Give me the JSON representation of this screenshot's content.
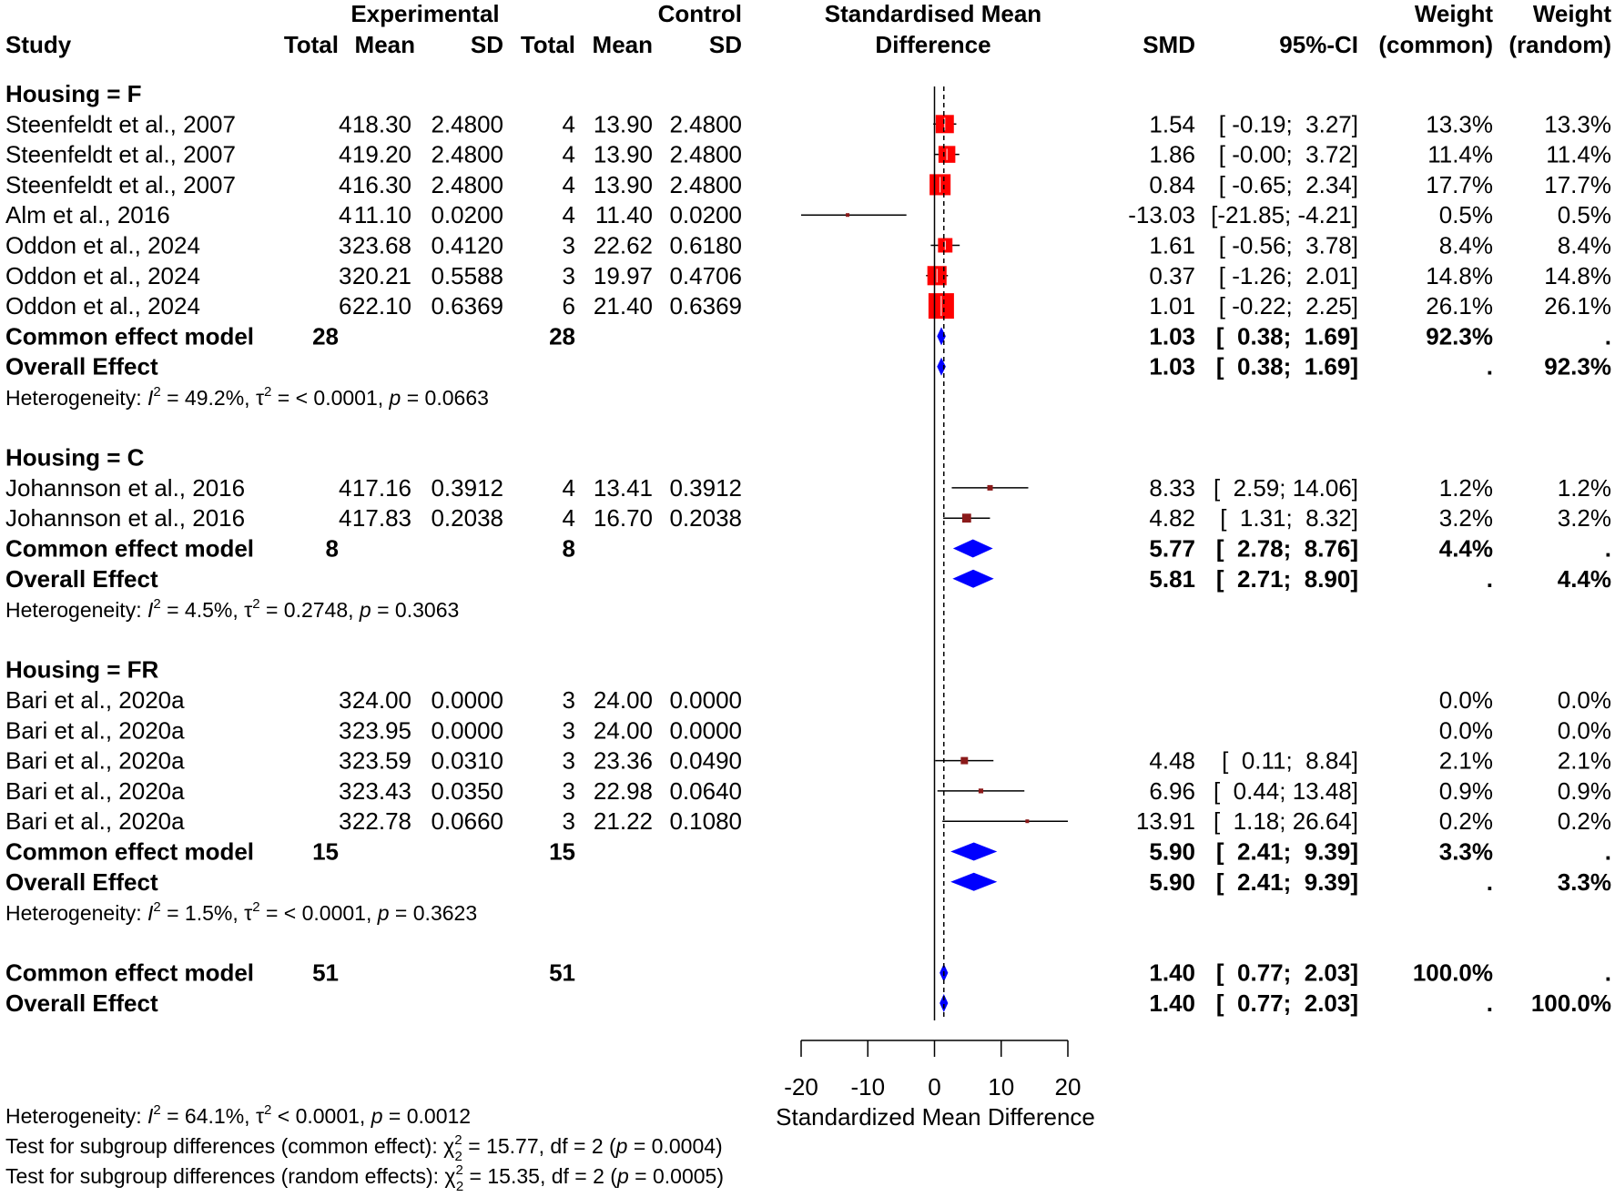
{
  "chart_data": {
    "type": "forest",
    "columns": {
      "experimental_group": "Experimental",
      "control_group": "Control",
      "smd_group_line1": "Standardised Mean",
      "smd_group_line2": "Difference",
      "weight_line1": "Weight",
      "weight_common_line2": "(common)",
      "weight_random_line2": "(random)",
      "study": "Study",
      "total": "Total",
      "mean": "Mean",
      "sd": "SD",
      "smd": "SMD",
      "ci": "95%-CI"
    },
    "subgroups": [
      {
        "label": "Housing = F",
        "studies": [
          {
            "study": "Steenfeldt et al., 2007",
            "e_total": "4",
            "e_mean": "18.30",
            "e_sd": "2.4800",
            "c_total": "4",
            "c_mean": "13.90",
            "c_sd": "2.4800",
            "smd": 1.54,
            "lower": -0.19,
            "upper": 3.27,
            "smd_text": "1.54",
            "ci_text": "[ -0.19;  3.27]",
            "w_common": "13.3%",
            "w_random": "13.3%",
            "weight": 13.3
          },
          {
            "study": "Steenfeldt et al., 2007",
            "e_total": "4",
            "e_mean": "19.20",
            "e_sd": "2.4800",
            "c_total": "4",
            "c_mean": "13.90",
            "c_sd": "2.4800",
            "smd": 1.86,
            "lower": -0.0,
            "upper": 3.72,
            "smd_text": "1.86",
            "ci_text": "[ -0.00;  3.72]",
            "w_common": "11.4%",
            "w_random": "11.4%",
            "weight": 11.4
          },
          {
            "study": "Steenfeldt et al., 2007",
            "e_total": "4",
            "e_mean": "16.30",
            "e_sd": "2.4800",
            "c_total": "4",
            "c_mean": "13.90",
            "c_sd": "2.4800",
            "smd": 0.84,
            "lower": -0.65,
            "upper": 2.34,
            "smd_text": "0.84",
            "ci_text": "[ -0.65;  2.34]",
            "w_common": "17.7%",
            "w_random": "17.7%",
            "weight": 17.7
          },
          {
            "study": "Alm et al., 2016",
            "e_total": "4",
            "e_mean": "11.10",
            "e_sd": "0.0200",
            "c_total": "4",
            "c_mean": "11.40",
            "c_sd": "0.0200",
            "smd": -13.03,
            "lower": -21.85,
            "upper": -4.21,
            "smd_text": "-13.03",
            "ci_text": "[-21.85; -4.21]",
            "w_common": "0.5%",
            "w_random": "0.5%",
            "weight": 0.5
          },
          {
            "study": "Oddon et al., 2024",
            "e_total": "3",
            "e_mean": "23.68",
            "e_sd": "0.4120",
            "c_total": "3",
            "c_mean": "22.62",
            "c_sd": "0.6180",
            "smd": 1.61,
            "lower": -0.56,
            "upper": 3.78,
            "smd_text": "1.61",
            "ci_text": "[ -0.56;  3.78]",
            "w_common": "8.4%",
            "w_random": "8.4%",
            "weight": 8.4
          },
          {
            "study": "Oddon et al., 2024",
            "e_total": "3",
            "e_mean": "20.21",
            "e_sd": "0.5588",
            "c_total": "3",
            "c_mean": "19.97",
            "c_sd": "0.4706",
            "smd": 0.37,
            "lower": -1.26,
            "upper": 2.01,
            "smd_text": "0.37",
            "ci_text": "[ -1.26;  2.01]",
            "w_common": "14.8%",
            "w_random": "14.8%",
            "weight": 14.8
          },
          {
            "study": "Oddon et al., 2024",
            "e_total": "6",
            "e_mean": "22.10",
            "e_sd": "0.6369",
            "c_total": "6",
            "c_mean": "21.40",
            "c_sd": "0.6369",
            "smd": 1.01,
            "lower": -0.22,
            "upper": 2.25,
            "smd_text": "1.01",
            "ci_text": "[ -0.22;  2.25]",
            "w_common": "26.1%",
            "w_random": "26.1%",
            "weight": 26.1
          }
        ],
        "common": {
          "label": "Common effect model",
          "e_total": "28",
          "c_total": "28",
          "smd": 1.03,
          "lower": 0.38,
          "upper": 1.69,
          "smd_text": "1.03",
          "ci_text": "[  0.38;  1.69]",
          "w_common": "92.3%",
          "w_random": "."
        },
        "random": {
          "label": "Overall Effect",
          "smd": 1.03,
          "lower": 0.38,
          "upper": 1.69,
          "smd_text": "1.03",
          "ci_text": "[  0.38;  1.69]",
          "w_common": ".",
          "w_random": "92.3%"
        },
        "heterogeneity": {
          "prefix": "Heterogeneity: ",
          "i2": " = 49.2%, ",
          "tau2": " = < 0.0001, ",
          "p": " = 0.0663"
        }
      },
      {
        "label": "Housing = C",
        "studies": [
          {
            "study": "Johannson et al., 2016",
            "e_total": "4",
            "e_mean": "17.16",
            "e_sd": "0.3912",
            "c_total": "4",
            "c_mean": "13.41",
            "c_sd": "0.3912",
            "smd": 8.33,
            "lower": 2.59,
            "upper": 14.06,
            "smd_text": "8.33",
            "ci_text": "[  2.59; 14.06]",
            "w_common": "1.2%",
            "w_random": "1.2%",
            "weight": 1.2
          },
          {
            "study": "Johannson et al., 2016",
            "e_total": "4",
            "e_mean": "17.83",
            "e_sd": "0.2038",
            "c_total": "4",
            "c_mean": "16.70",
            "c_sd": "0.2038",
            "smd": 4.82,
            "lower": 1.31,
            "upper": 8.32,
            "smd_text": "4.82",
            "ci_text": "[  1.31;  8.32]",
            "w_common": "3.2%",
            "w_random": "3.2%",
            "weight": 3.2
          }
        ],
        "common": {
          "label": "Common effect model",
          "e_total": "8",
          "c_total": "8",
          "smd": 5.77,
          "lower": 2.78,
          "upper": 8.76,
          "smd_text": "5.77",
          "ci_text": "[  2.78;  8.76]",
          "w_common": "4.4%",
          "w_random": "."
        },
        "random": {
          "label": "Overall Effect",
          "smd": 5.81,
          "lower": 2.71,
          "upper": 8.9,
          "smd_text": "5.81",
          "ci_text": "[  2.71;  8.90]",
          "w_common": ".",
          "w_random": "4.4%"
        },
        "heterogeneity": {
          "prefix": "Heterogeneity: ",
          "i2": " = 4.5%, ",
          "tau2": " = 0.2748, ",
          "p": " = 0.3063"
        }
      },
      {
        "label": "Housing = FR",
        "studies": [
          {
            "study": "Bari et al., 2020a",
            "e_total": "3",
            "e_mean": "24.00",
            "e_sd": "0.0000",
            "c_total": "3",
            "c_mean": "24.00",
            "c_sd": "0.0000",
            "smd": null,
            "lower": null,
            "upper": null,
            "smd_text": "",
            "ci_text": "",
            "w_common": "0.0%",
            "w_random": "0.0%",
            "weight": 0
          },
          {
            "study": "Bari et al., 2020a",
            "e_total": "3",
            "e_mean": "23.95",
            "e_sd": "0.0000",
            "c_total": "3",
            "c_mean": "24.00",
            "c_sd": "0.0000",
            "smd": null,
            "lower": null,
            "upper": null,
            "smd_text": "",
            "ci_text": "",
            "w_common": "0.0%",
            "w_random": "0.0%",
            "weight": 0
          },
          {
            "study": "Bari et al., 2020a",
            "e_total": "3",
            "e_mean": "23.59",
            "e_sd": "0.0310",
            "c_total": "3",
            "c_mean": "23.36",
            "c_sd": "0.0490",
            "smd": 4.48,
            "lower": 0.11,
            "upper": 8.84,
            "smd_text": "4.48",
            "ci_text": "[  0.11;  8.84]",
            "w_common": "2.1%",
            "w_random": "2.1%",
            "weight": 2.1
          },
          {
            "study": "Bari et al., 2020a",
            "e_total": "3",
            "e_mean": "23.43",
            "e_sd": "0.0350",
            "c_total": "3",
            "c_mean": "22.98",
            "c_sd": "0.0640",
            "smd": 6.96,
            "lower": 0.44,
            "upper": 13.48,
            "smd_text": "6.96",
            "ci_text": "[  0.44; 13.48]",
            "w_common": "0.9%",
            "w_random": "0.9%",
            "weight": 0.9
          },
          {
            "study": "Bari et al., 2020a",
            "e_total": "3",
            "e_mean": "22.78",
            "e_sd": "0.0660",
            "c_total": "3",
            "c_mean": "21.22",
            "c_sd": "0.1080",
            "smd": 13.91,
            "lower": 1.18,
            "upper": 26.64,
            "smd_text": "13.91",
            "ci_text": "[  1.18; 26.64]",
            "w_common": "0.2%",
            "w_random": "0.2%",
            "weight": 0.2
          }
        ],
        "common": {
          "label": "Common effect model",
          "e_total": "15",
          "c_total": "15",
          "smd": 5.9,
          "lower": 2.41,
          "upper": 9.39,
          "smd_text": "5.90",
          "ci_text": "[  2.41;  9.39]",
          "w_common": "3.3%",
          "w_random": "."
        },
        "random": {
          "label": "Overall Effect",
          "smd": 5.9,
          "lower": 2.41,
          "upper": 9.39,
          "smd_text": "5.90",
          "ci_text": "[  2.41;  9.39]",
          "w_common": ".",
          "w_random": "3.3%"
        },
        "heterogeneity": {
          "prefix": "Heterogeneity: ",
          "i2": " = 1.5%, ",
          "tau2": " = < 0.0001, ",
          "p": " = 0.3623"
        }
      }
    ],
    "overall": {
      "common": {
        "label": "Common effect model",
        "e_total": "51",
        "c_total": "51",
        "smd": 1.4,
        "lower": 0.77,
        "upper": 2.03,
        "smd_text": "1.40",
        "ci_text": "[  0.77;  2.03]",
        "w_common": "100.0%",
        "w_random": "."
      },
      "random": {
        "label": "Overall Effect",
        "smd": 1.4,
        "lower": 0.77,
        "upper": 2.03,
        "smd_text": "1.40",
        "ci_text": "[  0.77;  2.03]",
        "w_common": ".",
        "w_random": "100.0%"
      },
      "heterogeneity": {
        "prefix": "Heterogeneity: ",
        "i2": " = 64.1%, ",
        "tau2": " < 0.0001, ",
        "p": " = 0.0012"
      },
      "subgroup_test_common": {
        "prefix": "Test for subgroup differences (common effect): ",
        "chi": "χ",
        "sup": "2",
        "sub": "2",
        "rest": " = 15.77, df = 2 (",
        "p": "p",
        "end": " = 0.0004)"
      },
      "subgroup_test_random": {
        "prefix": "Test for subgroup differences (random effects): ",
        "chi": "χ",
        "sup": "2",
        "sub": "2",
        "rest": " = 15.35, df = 2 (",
        "p": "p",
        "end": " = 0.0005)"
      }
    },
    "axis": {
      "xlim": [
        -20,
        20
      ],
      "ticks": [
        -20,
        -10,
        0,
        10,
        20
      ],
      "tick_labels": [
        "-20",
        "-10",
        "0",
        "10",
        "20"
      ],
      "xlabel": "Standardized Mean Difference",
      "reference_line": 0,
      "common_effect_line": 1.4
    },
    "labels": {
      "i2_symbol": "I",
      "tau_symbol": "τ",
      "p_symbol": "p",
      "superscript": "2"
    },
    "colors": {
      "study_box": "#ff0000",
      "small_box": "#8b1a1a",
      "diamond": "#0000ff",
      "line": "#000000"
    }
  }
}
